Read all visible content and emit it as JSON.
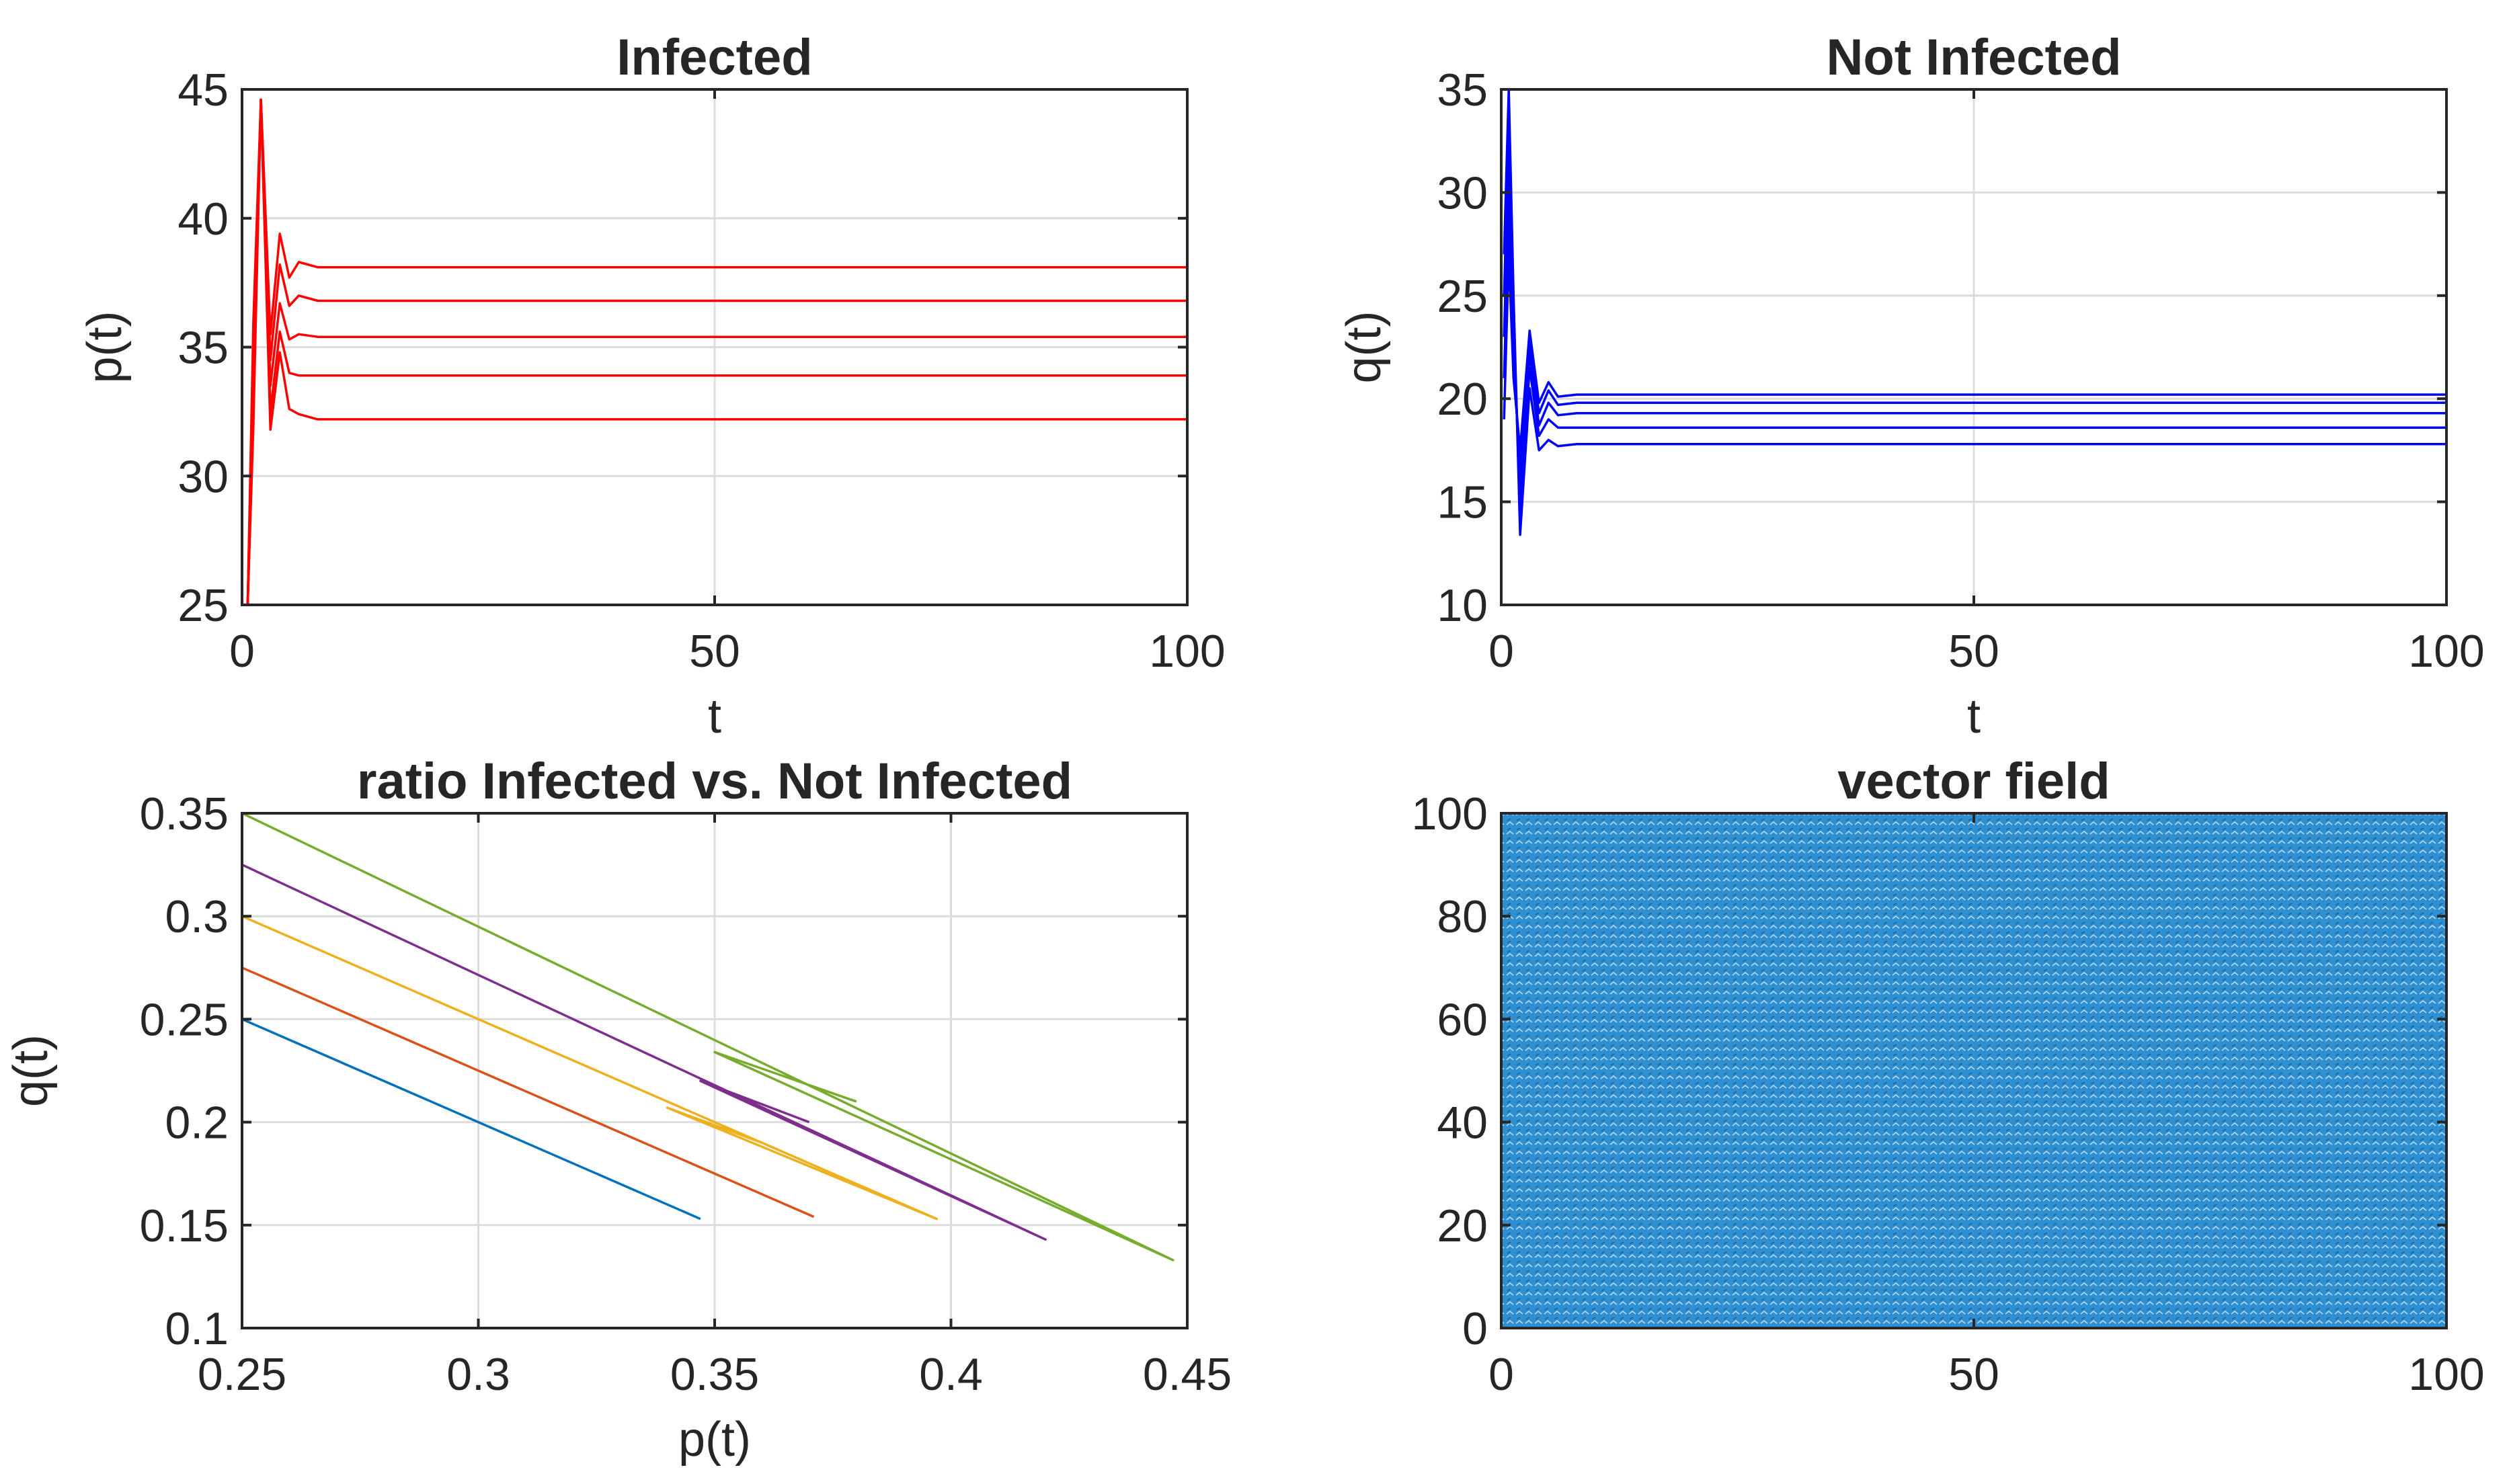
{
  "chart_data": [
    {
      "type": "line",
      "title": "Infected",
      "xlabel": "t",
      "ylabel": "p(t)",
      "xlim": [
        0,
        100
      ],
      "ylim": [
        25,
        45
      ],
      "xticks": [
        "0",
        "50",
        "100"
      ],
      "yticks": [
        "25",
        "30",
        "35",
        "40",
        "45"
      ],
      "grid": true,
      "color": "#ff0000",
      "series": [
        {
          "name": "run1",
          "t": [
            0.6,
            1.2,
            2,
            3,
            4,
            5,
            6,
            8,
            10,
            100
          ],
          "values": [
            25,
            36,
            44.6,
            31.8,
            34.8,
            32.6,
            32.4,
            32.2,
            32.2,
            32.2
          ]
        },
        {
          "name": "run2",
          "t": [
            0.6,
            1.2,
            2,
            3,
            4,
            5,
            6,
            8,
            10,
            100
          ],
          "values": [
            25,
            35,
            44.6,
            32.5,
            35.6,
            34,
            33.9,
            33.9,
            33.9,
            33.9
          ]
        },
        {
          "name": "run3",
          "t": [
            0.6,
            1.2,
            2,
            3,
            4,
            5,
            6,
            8,
            10,
            100
          ],
          "values": [
            25,
            34,
            44.6,
            33.5,
            36.7,
            35.3,
            35.5,
            35.4,
            35.4,
            35.4
          ]
        },
        {
          "name": "run4",
          "t": [
            0.6,
            1.2,
            2,
            3,
            4,
            5,
            6,
            8,
            10,
            100
          ],
          "values": [
            25,
            33,
            44.6,
            34.5,
            38.2,
            36.6,
            37,
            36.8,
            36.8,
            36.8
          ]
        },
        {
          "name": "run5",
          "t": [
            0.6,
            1.2,
            2,
            3,
            4,
            5,
            6,
            8,
            10,
            100
          ],
          "values": [
            25,
            32,
            44.6,
            35.5,
            39.4,
            37.7,
            38.3,
            38.1,
            38.1,
            38.1
          ]
        }
      ]
    },
    {
      "type": "line",
      "title": "Not Infected",
      "xlabel": "t",
      "ylabel": "q(t)",
      "xlim": [
        0,
        100
      ],
      "ylim": [
        10,
        35
      ],
      "xticks": [
        "0",
        "50",
        "100"
      ],
      "yticks": [
        "10",
        "15",
        "20",
        "25",
        "30",
        "35"
      ],
      "grid": true,
      "color": "#0000ff",
      "series": [
        {
          "name": "run1",
          "t": [
            0.3,
            0.8,
            1.3,
            2,
            3,
            4,
            5,
            6,
            8,
            10,
            100
          ],
          "values": [
            27,
            35,
            25,
            13.4,
            20.5,
            17.5,
            18,
            17.7,
            17.8,
            17.8,
            17.8
          ]
        },
        {
          "name": "run2",
          "t": [
            0.3,
            0.8,
            1.3,
            2,
            3,
            4,
            5,
            6,
            8,
            10,
            100
          ],
          "values": [
            25,
            33,
            24,
            14.5,
            21.5,
            18.2,
            19,
            18.6,
            18.6,
            18.6,
            18.6
          ]
        },
        {
          "name": "run3",
          "t": [
            0.3,
            0.8,
            1.3,
            2,
            3,
            4,
            5,
            6,
            8,
            10,
            100
          ],
          "values": [
            23,
            31,
            23,
            15.5,
            22.2,
            18.7,
            19.8,
            19.2,
            19.3,
            19.3,
            19.3
          ]
        },
        {
          "name": "run4",
          "t": [
            0.3,
            0.8,
            1.3,
            2,
            3,
            4,
            5,
            6,
            8,
            10,
            100
          ],
          "values": [
            21,
            29,
            22,
            16.5,
            22.8,
            19.3,
            20.4,
            19.7,
            19.8,
            19.8,
            19.8
          ]
        },
        {
          "name": "run5",
          "t": [
            0.3,
            0.8,
            1.3,
            2,
            3,
            4,
            5,
            6,
            8,
            10,
            100
          ],
          "values": [
            19,
            27,
            21,
            17.5,
            23.3,
            19.8,
            20.8,
            20.1,
            20.2,
            20.2,
            20.2
          ]
        }
      ]
    },
    {
      "type": "line",
      "title": "ratio Infected vs. Not Infected",
      "xlabel": "p(t)",
      "ylabel": "q(t)",
      "xlim": [
        0.25,
        0.45
      ],
      "ylim": [
        0.1,
        0.35
      ],
      "xticks": [
        "0.25",
        "0.3",
        "0.35",
        "0.4",
        "0.45"
      ],
      "yticks": [
        "0.1",
        "0.15",
        "0.2",
        "0.25",
        "0.3",
        "0.35"
      ],
      "grid": true,
      "series": [
        {
          "name": "run1",
          "color": "#0072bd",
          "x": [
            0.25,
            0.347
          ],
          "y": [
            0.25,
            0.153
          ]
        },
        {
          "name": "run2",
          "color": "#d95319",
          "x": [
            0.25,
            0.371
          ],
          "y": [
            0.275,
            0.154
          ]
        },
        {
          "name": "run3",
          "color": "#edb120",
          "x": [
            0.25,
            0.397,
            0.34,
            0.36
          ],
          "y": [
            0.3,
            0.153,
            0.207,
            0.19
          ]
        },
        {
          "name": "run4",
          "color": "#7e2f8e",
          "x": [
            0.25,
            0.42,
            0.347,
            0.37
          ],
          "y": [
            0.325,
            0.143,
            0.22,
            0.2
          ]
        },
        {
          "name": "run5",
          "color": "#77ac30",
          "x": [
            0.25,
            0.447,
            0.35,
            0.38
          ],
          "y": [
            0.35,
            0.133,
            0.234,
            0.21
          ]
        }
      ]
    },
    {
      "type": "quiver",
      "title": "vector field",
      "xlabel": "",
      "ylabel": "",
      "xlim": [
        0,
        100
      ],
      "ylim": [
        0,
        100
      ],
      "xticks": [
        "0",
        "50",
        "100"
      ],
      "yticks": [
        "0",
        "20",
        "40",
        "60",
        "80",
        "100"
      ],
      "grid": false,
      "color": "#0072bd",
      "grid_points": [
        101,
        101
      ]
    }
  ]
}
